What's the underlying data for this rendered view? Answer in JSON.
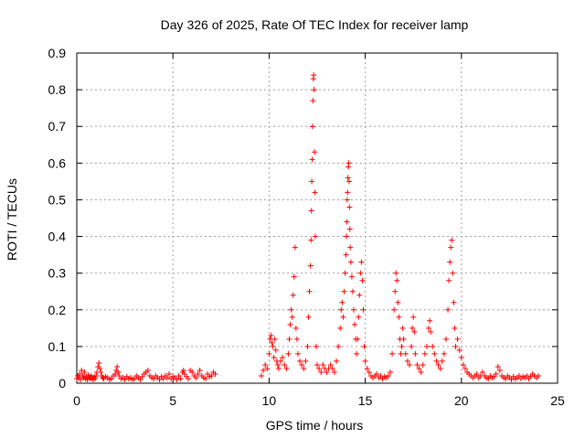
{
  "chart_data": {
    "type": "scatter",
    "title": "Day 326 of 2025, Rate Of TEC Index for receiver lamp",
    "xlabel": "GPS time / hours",
    "ylabel": "ROTI / TECUs",
    "xlim": [
      0,
      25
    ],
    "ylim": [
      0,
      0.9
    ],
    "xticks": [
      "0",
      "5",
      "10",
      "15",
      "20",
      "25"
    ],
    "yticks": [
      "0",
      "0.1",
      "0.2",
      "0.3",
      "0.4",
      "0.5",
      "0.6",
      "0.7",
      "0.8",
      "0.9"
    ],
    "grid": true,
    "marker": "+",
    "color": "#ff0000",
    "series": [
      {
        "points": [
          [
            0.0,
            0.012
          ],
          [
            0.05,
            0.02
          ],
          [
            0.1,
            0.015
          ],
          [
            0.15,
            0.025
          ],
          [
            0.2,
            0.01
          ],
          [
            0.25,
            0.035
          ],
          [
            0.3,
            0.02
          ],
          [
            0.35,
            0.015
          ],
          [
            0.4,
            0.03
          ],
          [
            0.45,
            0.012
          ],
          [
            0.5,
            0.018
          ],
          [
            0.55,
            0.01
          ],
          [
            0.6,
            0.022
          ],
          [
            0.65,
            0.015
          ],
          [
            0.7,
            0.012
          ],
          [
            0.75,
            0.02
          ],
          [
            0.8,
            0.015
          ],
          [
            0.85,
            0.01
          ],
          [
            0.9,
            0.018
          ],
          [
            0.95,
            0.012
          ],
          [
            1.0,
            0.02
          ],
          [
            1.05,
            0.03
          ],
          [
            1.1,
            0.045
          ],
          [
            1.15,
            0.055
          ],
          [
            1.2,
            0.04
          ],
          [
            1.25,
            0.03
          ],
          [
            1.3,
            0.02
          ],
          [
            1.35,
            0.015
          ],
          [
            1.4,
            0.012
          ],
          [
            1.5,
            0.018
          ],
          [
            1.6,
            0.015
          ],
          [
            1.7,
            0.01
          ],
          [
            1.8,
            0.012
          ],
          [
            1.9,
            0.02
          ],
          [
            2.0,
            0.025
          ],
          [
            2.05,
            0.035
          ],
          [
            2.1,
            0.045
          ],
          [
            2.15,
            0.03
          ],
          [
            2.2,
            0.02
          ],
          [
            2.3,
            0.012
          ],
          [
            2.4,
            0.015
          ],
          [
            2.5,
            0.01
          ],
          [
            2.6,
            0.018
          ],
          [
            2.7,
            0.012
          ],
          [
            2.8,
            0.015
          ],
          [
            2.9,
            0.01
          ],
          [
            3.0,
            0.012
          ],
          [
            3.1,
            0.02
          ],
          [
            3.2,
            0.015
          ],
          [
            3.3,
            0.01
          ],
          [
            3.4,
            0.018
          ],
          [
            3.5,
            0.025
          ],
          [
            3.6,
            0.03
          ],
          [
            3.7,
            0.035
          ],
          [
            3.8,
            0.02
          ],
          [
            3.9,
            0.015
          ],
          [
            4.0,
            0.012
          ],
          [
            4.1,
            0.02
          ],
          [
            4.2,
            0.015
          ],
          [
            4.3,
            0.01
          ],
          [
            4.4,
            0.018
          ],
          [
            4.5,
            0.012
          ],
          [
            4.6,
            0.02
          ],
          [
            4.7,
            0.015
          ],
          [
            4.8,
            0.025
          ],
          [
            4.9,
            0.012
          ],
          [
            5.0,
            0.018
          ],
          [
            5.1,
            0.015
          ],
          [
            5.2,
            0.01
          ],
          [
            5.3,
            0.02
          ],
          [
            5.4,
            0.012
          ],
          [
            5.5,
            0.03
          ],
          [
            5.55,
            0.035
          ],
          [
            5.6,
            0.025
          ],
          [
            5.7,
            0.018
          ],
          [
            5.8,
            0.012
          ],
          [
            5.9,
            0.035
          ],
          [
            6.0,
            0.03
          ],
          [
            6.1,
            0.02
          ],
          [
            6.2,
            0.015
          ],
          [
            6.3,
            0.025
          ],
          [
            6.4,
            0.035
          ],
          [
            6.5,
            0.02
          ],
          [
            6.6,
            0.015
          ],
          [
            6.7,
            0.012
          ],
          [
            6.8,
            0.025
          ],
          [
            6.9,
            0.018
          ],
          [
            7.0,
            0.02
          ],
          [
            7.1,
            0.03
          ],
          [
            7.2,
            0.025
          ],
          [
            9.6,
            0.02
          ],
          [
            9.7,
            0.035
          ],
          [
            9.8,
            0.05
          ],
          [
            9.9,
            0.04
          ],
          [
            10.0,
            0.08
          ],
          [
            10.05,
            0.12
          ],
          [
            10.1,
            0.13
          ],
          [
            10.15,
            0.11
          ],
          [
            10.2,
            0.1
          ],
          [
            10.25,
            0.07
          ],
          [
            10.3,
            0.12
          ],
          [
            10.35,
            0.09
          ],
          [
            10.4,
            0.06
          ],
          [
            10.45,
            0.05
          ],
          [
            10.5,
            0.04
          ],
          [
            10.6,
            0.06
          ],
          [
            10.7,
            0.07
          ],
          [
            10.8,
            0.05
          ],
          [
            10.9,
            0.04
          ],
          [
            11.0,
            0.08
          ],
          [
            11.05,
            0.12
          ],
          [
            11.1,
            0.16
          ],
          [
            11.15,
            0.2
          ],
          [
            11.2,
            0.18
          ],
          [
            11.25,
            0.24
          ],
          [
            11.3,
            0.29
          ],
          [
            11.35,
            0.37
          ],
          [
            11.4,
            0.15
          ],
          [
            11.45,
            0.12
          ],
          [
            11.5,
            0.08
          ],
          [
            11.6,
            0.06
          ],
          [
            11.7,
            0.05
          ],
          [
            11.8,
            0.04
          ],
          [
            11.9,
            0.06
          ],
          [
            12.0,
            0.1
          ],
          [
            12.05,
            0.18
          ],
          [
            12.1,
            0.25
          ],
          [
            12.15,
            0.32
          ],
          [
            12.18,
            0.39
          ],
          [
            12.2,
            0.47
          ],
          [
            12.22,
            0.55
          ],
          [
            12.24,
            0.61
          ],
          [
            12.26,
            0.7
          ],
          [
            12.28,
            0.77
          ],
          [
            12.3,
            0.83
          ],
          [
            12.32,
            0.84
          ],
          [
            12.34,
            0.8
          ],
          [
            12.36,
            0.63
          ],
          [
            12.38,
            0.52
          ],
          [
            12.4,
            0.4
          ],
          [
            12.45,
            0.1
          ],
          [
            12.5,
            0.05
          ],
          [
            12.6,
            0.04
          ],
          [
            12.7,
            0.03
          ],
          [
            12.8,
            0.05
          ],
          [
            12.9,
            0.04
          ],
          [
            13.0,
            0.03
          ],
          [
            13.1,
            0.04
          ],
          [
            13.2,
            0.05
          ],
          [
            13.3,
            0.04
          ],
          [
            13.4,
            0.03
          ],
          [
            13.5,
            0.06
          ],
          [
            13.6,
            0.1
          ],
          [
            13.7,
            0.15
          ],
          [
            13.75,
            0.2
          ],
          [
            13.8,
            0.22
          ],
          [
            13.85,
            0.18
          ],
          [
            13.9,
            0.25
          ],
          [
            13.95,
            0.3
          ],
          [
            14.0,
            0.35
          ],
          [
            14.02,
            0.4
          ],
          [
            14.04,
            0.44
          ],
          [
            14.06,
            0.5
          ],
          [
            14.08,
            0.52
          ],
          [
            14.1,
            0.56
          ],
          [
            14.12,
            0.59
          ],
          [
            14.14,
            0.6
          ],
          [
            14.16,
            0.55
          ],
          [
            14.18,
            0.48
          ],
          [
            14.2,
            0.42
          ],
          [
            14.22,
            0.37
          ],
          [
            14.25,
            0.33
          ],
          [
            14.3,
            0.29
          ],
          [
            14.35,
            0.25
          ],
          [
            14.4,
            0.2
          ],
          [
            14.45,
            0.16
          ],
          [
            14.5,
            0.12
          ],
          [
            14.55,
            0.08
          ],
          [
            14.6,
            0.12
          ],
          [
            14.65,
            0.18
          ],
          [
            14.7,
            0.24
          ],
          [
            14.75,
            0.3
          ],
          [
            14.8,
            0.33
          ],
          [
            14.85,
            0.28
          ],
          [
            14.9,
            0.2
          ],
          [
            14.95,
            0.1
          ],
          [
            15.0,
            0.06
          ],
          [
            15.1,
            0.04
          ],
          [
            15.2,
            0.03
          ],
          [
            15.3,
            0.02
          ],
          [
            15.4,
            0.015
          ],
          [
            15.5,
            0.02
          ],
          [
            15.6,
            0.025
          ],
          [
            15.7,
            0.015
          ],
          [
            15.8,
            0.02
          ],
          [
            15.9,
            0.012
          ],
          [
            16.0,
            0.018
          ],
          [
            16.1,
            0.015
          ],
          [
            16.2,
            0.02
          ],
          [
            16.3,
            0.03
          ],
          [
            16.4,
            0.08
          ],
          [
            16.5,
            0.2
          ],
          [
            16.55,
            0.25
          ],
          [
            16.6,
            0.3
          ],
          [
            16.65,
            0.28
          ],
          [
            16.7,
            0.22
          ],
          [
            16.75,
            0.18
          ],
          [
            16.8,
            0.12
          ],
          [
            16.85,
            0.08
          ],
          [
            16.9,
            0.1
          ],
          [
            16.95,
            0.15
          ],
          [
            17.0,
            0.12
          ],
          [
            17.1,
            0.08
          ],
          [
            17.2,
            0.06
          ],
          [
            17.3,
            0.05
          ],
          [
            17.4,
            0.1
          ],
          [
            17.45,
            0.15
          ],
          [
            17.5,
            0.18
          ],
          [
            17.55,
            0.14
          ],
          [
            17.6,
            0.08
          ],
          [
            17.7,
            0.05
          ],
          [
            17.8,
            0.04
          ],
          [
            17.9,
            0.03
          ],
          [
            18.0,
            0.05
          ],
          [
            18.1,
            0.08
          ],
          [
            18.2,
            0.1
          ],
          [
            18.3,
            0.15
          ],
          [
            18.35,
            0.17
          ],
          [
            18.4,
            0.14
          ],
          [
            18.5,
            0.1
          ],
          [
            18.6,
            0.08
          ],
          [
            18.7,
            0.06
          ],
          [
            18.8,
            0.05
          ],
          [
            18.9,
            0.04
          ],
          [
            19.0,
            0.06
          ],
          [
            19.1,
            0.08
          ],
          [
            19.2,
            0.12
          ],
          [
            19.3,
            0.2
          ],
          [
            19.35,
            0.28
          ],
          [
            19.4,
            0.33
          ],
          [
            19.45,
            0.37
          ],
          [
            19.5,
            0.39
          ],
          [
            19.55,
            0.3
          ],
          [
            19.6,
            0.22
          ],
          [
            19.65,
            0.15
          ],
          [
            19.7,
            0.1
          ],
          [
            19.8,
            0.12
          ],
          [
            19.9,
            0.09
          ],
          [
            20.0,
            0.07
          ],
          [
            20.1,
            0.05
          ],
          [
            20.2,
            0.04
          ],
          [
            20.3,
            0.03
          ],
          [
            20.4,
            0.025
          ],
          [
            20.5,
            0.02
          ],
          [
            20.6,
            0.015
          ],
          [
            20.7,
            0.02
          ],
          [
            20.8,
            0.025
          ],
          [
            20.9,
            0.015
          ],
          [
            21.0,
            0.02
          ],
          [
            21.1,
            0.03
          ],
          [
            21.2,
            0.02
          ],
          [
            21.3,
            0.015
          ],
          [
            21.4,
            0.012
          ],
          [
            21.5,
            0.02
          ],
          [
            21.6,
            0.015
          ],
          [
            21.7,
            0.018
          ],
          [
            21.8,
            0.025
          ],
          [
            21.9,
            0.045
          ],
          [
            22.0,
            0.035
          ],
          [
            22.1,
            0.02
          ],
          [
            22.2,
            0.015
          ],
          [
            22.3,
            0.012
          ],
          [
            22.4,
            0.02
          ],
          [
            22.5,
            0.015
          ],
          [
            22.6,
            0.01
          ],
          [
            22.7,
            0.018
          ],
          [
            22.8,
            0.012
          ],
          [
            22.9,
            0.015
          ],
          [
            23.0,
            0.02
          ],
          [
            23.1,
            0.012
          ],
          [
            23.2,
            0.018
          ],
          [
            23.3,
            0.015
          ],
          [
            23.4,
            0.02
          ],
          [
            23.5,
            0.012
          ],
          [
            23.6,
            0.018
          ],
          [
            23.7,
            0.025
          ],
          [
            23.8,
            0.02
          ],
          [
            23.9,
            0.015
          ],
          [
            24.0,
            0.02
          ]
        ]
      }
    ]
  }
}
